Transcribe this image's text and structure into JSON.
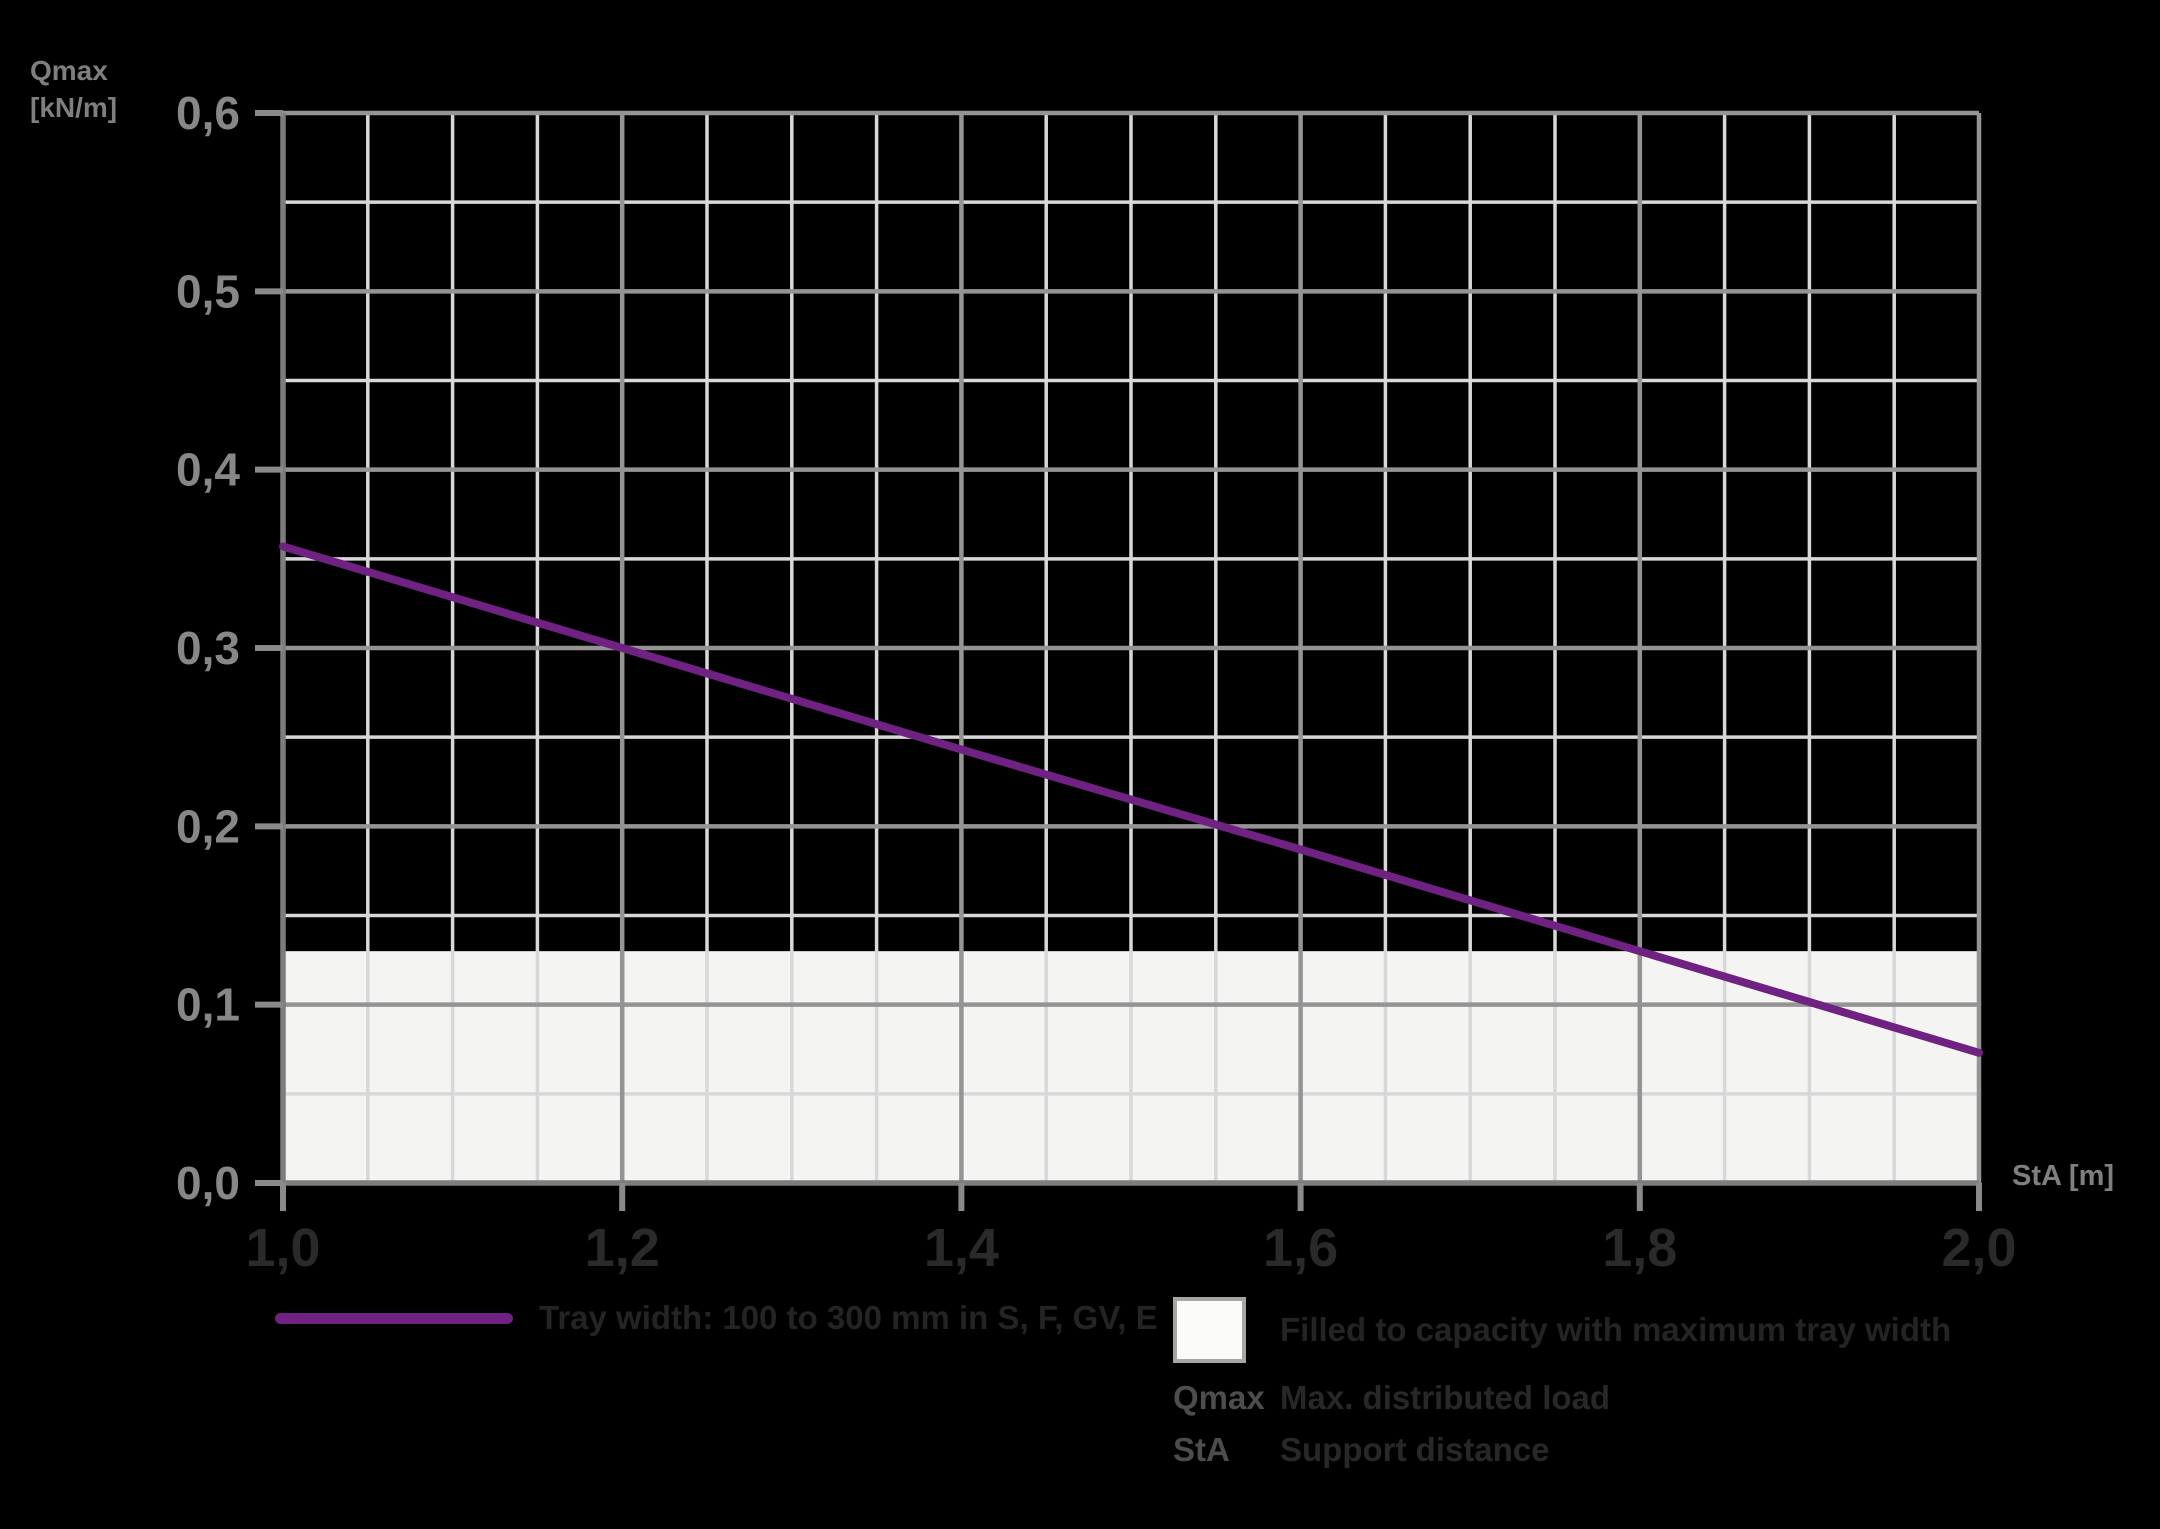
{
  "chart_data": {
    "type": "line",
    "title": "",
    "x_axis": {
      "title": "StA [m]",
      "min": 1.0,
      "max": 2.0,
      "major_step": 0.2,
      "minor_step": 0.05,
      "ticks": [
        {
          "v": 1.0,
          "label": "1,0"
        },
        {
          "v": 1.2,
          "label": "1,2"
        },
        {
          "v": 1.4,
          "label": "1,4"
        },
        {
          "v": 1.6,
          "label": "1,6"
        },
        {
          "v": 1.8,
          "label": "1,8"
        },
        {
          "v": 2.0,
          "label": "2,0"
        }
      ]
    },
    "y_axis": {
      "title_line1": "Qmax",
      "title_line2": "[kN/m]",
      "min": 0.0,
      "max": 0.6,
      "major_step": 0.1,
      "minor_step": 0.05,
      "ticks": [
        {
          "v": 0.0,
          "label": "0,0"
        },
        {
          "v": 0.1,
          "label": "0,1"
        },
        {
          "v": 0.2,
          "label": "0,2"
        },
        {
          "v": 0.3,
          "label": "0,3"
        },
        {
          "v": 0.4,
          "label": "0,4"
        },
        {
          "v": 0.5,
          "label": "0,5"
        },
        {
          "v": 0.6,
          "label": "0,6"
        }
      ]
    },
    "grid": {
      "major_color": "#949494",
      "minor_color": "#d8d8d8",
      "axis_color": "#7d7d7d",
      "tick_color": "#8a8a8a",
      "y_label_color": "#878787",
      "x_label_color": "#2a2a2a"
    },
    "band": {
      "label": "Filled to capacity with maximum tray width",
      "y_from": 0.0,
      "y_to": 0.13,
      "fill": "#f4f4f3"
    },
    "series": [
      {
        "name": "Tray width: 100 to 300 mm in S, F, GV, E",
        "color": "#6f2282",
        "points": [
          [
            1.0,
            0.357
          ],
          [
            1.2,
            0.3
          ],
          [
            1.4,
            0.243
          ],
          [
            1.6,
            0.187
          ],
          [
            1.8,
            0.13
          ],
          [
            2.0,
            0.073
          ]
        ]
      }
    ]
  },
  "legend": {
    "line_label": "Tray width: 100 to 300 mm in S, F, GV, E",
    "band_label": "Filled to capacity with maximum tray width",
    "terms": [
      {
        "term": "Qmax",
        "definition": "Max. distributed load"
      },
      {
        "term": "StA",
        "definition": "Support distance"
      }
    ]
  }
}
